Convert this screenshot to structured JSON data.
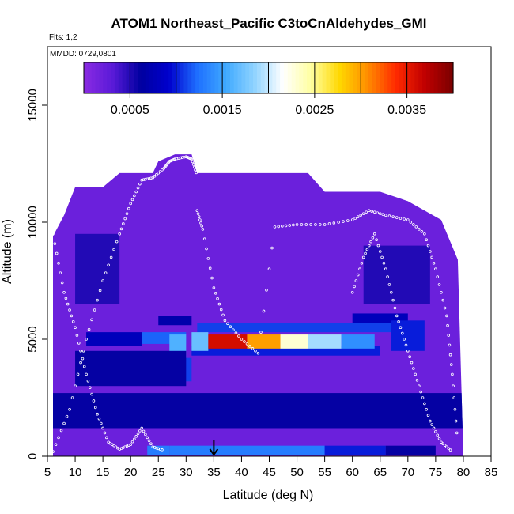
{
  "chart_data": {
    "type": "heatmap",
    "title": "ATOM1 Northeast_Pacific C3toCnAldehydes_GMI",
    "flights_label": "Flts: 1,2",
    "date_label": "MMDD: 0729,0801",
    "xlabel": "Latitude (deg N)",
    "ylabel": "Altitude (m)",
    "xlim": [
      5,
      85
    ],
    "ylim": [
      0,
      17500
    ],
    "x_ticks": [
      5,
      10,
      15,
      20,
      25,
      30,
      35,
      40,
      45,
      50,
      55,
      60,
      65,
      70,
      75,
      80,
      85
    ],
    "x_tick_labels": [
      "5",
      "10",
      "15",
      "20",
      "25",
      "30",
      "35",
      "40",
      "45",
      "50",
      "55",
      "60",
      "65",
      "70",
      "75",
      "80",
      "85"
    ],
    "y_ticks": [
      0,
      5000,
      10000,
      15000
    ],
    "y_tick_labels": [
      "0",
      "5000",
      "10000",
      "15000"
    ],
    "colorbar": {
      "range": [
        0,
        0.004
      ],
      "ticks": [
        0.0005,
        0.0015,
        0.0025,
        0.0035
      ],
      "tick_labels": [
        "0.0005",
        "0.0015",
        "0.0025",
        "0.0035"
      ],
      "colors": [
        "#8a2be2",
        "#5a1ad8",
        "#0000a0",
        "#0000cd",
        "#1e6fff",
        "#3fa9ff",
        "#8fd3ff",
        "#ffffff",
        "#ffffa0",
        "#ffd700",
        "#ff8c00",
        "#ff2a00",
        "#c00000",
        "#7a0000"
      ]
    },
    "grid": false,
    "legend": "colorbar top",
    "arrow_marker_x": 35,
    "curtain_upper_envelope": [
      [
        6,
        9400
      ],
      [
        8,
        10300
      ],
      [
        10,
        11500
      ],
      [
        15,
        11500
      ],
      [
        18,
        12100
      ],
      [
        24,
        12100
      ],
      [
        25,
        12600
      ],
      [
        28,
        12900
      ],
      [
        31,
        12900
      ],
      [
        32,
        12100
      ],
      [
        52,
        12100
      ],
      [
        55,
        11300
      ],
      [
        65,
        11300
      ],
      [
        70,
        10900
      ],
      [
        76,
        10100
      ],
      [
        79,
        8400
      ],
      [
        80,
        0
      ]
    ],
    "background_value": 0.0002,
    "features": [
      {
        "lat": [
          12,
          22
        ],
        "alt": [
          4700,
          5300
        ],
        "value": 0.0008
      },
      {
        "lat": [
          22,
          30
        ],
        "alt": [
          4800,
          5300
        ],
        "value": 0.0012
      },
      {
        "lat": [
          27,
          30
        ],
        "alt": [
          3800,
          5200
        ],
        "value": 0.0016
      },
      {
        "lat": [
          28,
          31
        ],
        "alt": [
          3200,
          4200
        ],
        "value": 0.0011
      },
      {
        "lat": [
          32,
          70
        ],
        "alt": [
          5300,
          5700
        ],
        "value": 0.0011
      },
      {
        "lat": [
          31,
          65
        ],
        "alt": [
          4300,
          4700
        ],
        "value": 0.001
      },
      {
        "lat": [
          25,
          31
        ],
        "alt": [
          5600,
          6000
        ],
        "value": 0.0007
      },
      {
        "lat": [
          60,
          70
        ],
        "alt": [
          5700,
          6100
        ],
        "value": 0.0008
      },
      {
        "lat": [
          67,
          73
        ],
        "alt": [
          4500,
          5800
        ],
        "value": 0.001
      },
      {
        "lat": [
          31,
          34
        ],
        "alt": [
          4500,
          5300
        ],
        "value": 0.0017
      },
      {
        "lat": [
          34,
          41
        ],
        "alt": [
          4600,
          5200
        ],
        "value": 0.0036
      },
      {
        "lat": [
          41,
          47
        ],
        "alt": [
          4600,
          5200
        ],
        "value": 0.003
      },
      {
        "lat": [
          47,
          52
        ],
        "alt": [
          4600,
          5200
        ],
        "value": 0.0023
      },
      {
        "lat": [
          52,
          58
        ],
        "alt": [
          4600,
          5200
        ],
        "value": 0.0019
      },
      {
        "lat": [
          58,
          64
        ],
        "alt": [
          4600,
          5200
        ],
        "value": 0.0014
      },
      {
        "lat": [
          23,
          27
        ],
        "alt": [
          50,
          450
        ],
        "value": 0.0013
      },
      {
        "lat": [
          27,
          55
        ],
        "alt": [
          50,
          450
        ],
        "value": 0.0013
      },
      {
        "lat": [
          55,
          66
        ],
        "alt": [
          50,
          450
        ],
        "value": 0.001
      },
      {
        "lat": [
          66,
          75
        ],
        "alt": [
          50,
          450
        ],
        "value": 0.0006
      },
      {
        "lat": [
          6,
          80
        ],
        "alt": [
          1200,
          2700
        ],
        "value": 0.0006
      },
      {
        "lat": [
          10,
          30
        ],
        "alt": [
          3000,
          4500
        ],
        "value": 0.0006
      },
      {
        "lat": [
          10,
          18
        ],
        "alt": [
          6500,
          9500
        ],
        "value": 0.0005
      },
      {
        "lat": [
          62,
          74
        ],
        "alt": [
          6500,
          9000
        ],
        "value": 0.0005
      }
    ],
    "flight_tracks": [
      {
        "lat": [
          6,
          9,
          12,
          15,
          18,
          20,
          22,
          24,
          26,
          27,
          28,
          30,
          31,
          32
        ],
        "alt": [
          200,
          2000,
          5000,
          7500,
          9500,
          10800,
          11800,
          11900,
          12300,
          12600,
          12700,
          12800,
          12700,
          12000
        ]
      },
      {
        "lat": [
          32,
          33,
          35,
          37,
          40,
          43,
          46,
          50,
          55,
          60,
          63,
          66,
          70,
          73,
          75,
          77,
          78,
          79
        ],
        "alt": [
          10500,
          9700,
          7200,
          5800,
          5000,
          4400,
          9800,
          9900,
          9900,
          10100,
          10500,
          10300,
          10100,
          9500,
          8000,
          6000,
          3500,
          500
        ]
      },
      {
        "lat": [
          6,
          8,
          10,
          12,
          14,
          16,
          18,
          20,
          22,
          24,
          26
        ],
        "alt": [
          9500,
          7000,
          5500,
          3500,
          1800,
          600,
          300,
          500,
          1200,
          400,
          250
        ]
      },
      {
        "lat": [
          60,
          62,
          64,
          66,
          68,
          70,
          72,
          74,
          76,
          78
        ],
        "alt": [
          7000,
          8500,
          9500,
          8000,
          6000,
          4500,
          3000,
          1500,
          600,
          200
        ]
      }
    ]
  }
}
